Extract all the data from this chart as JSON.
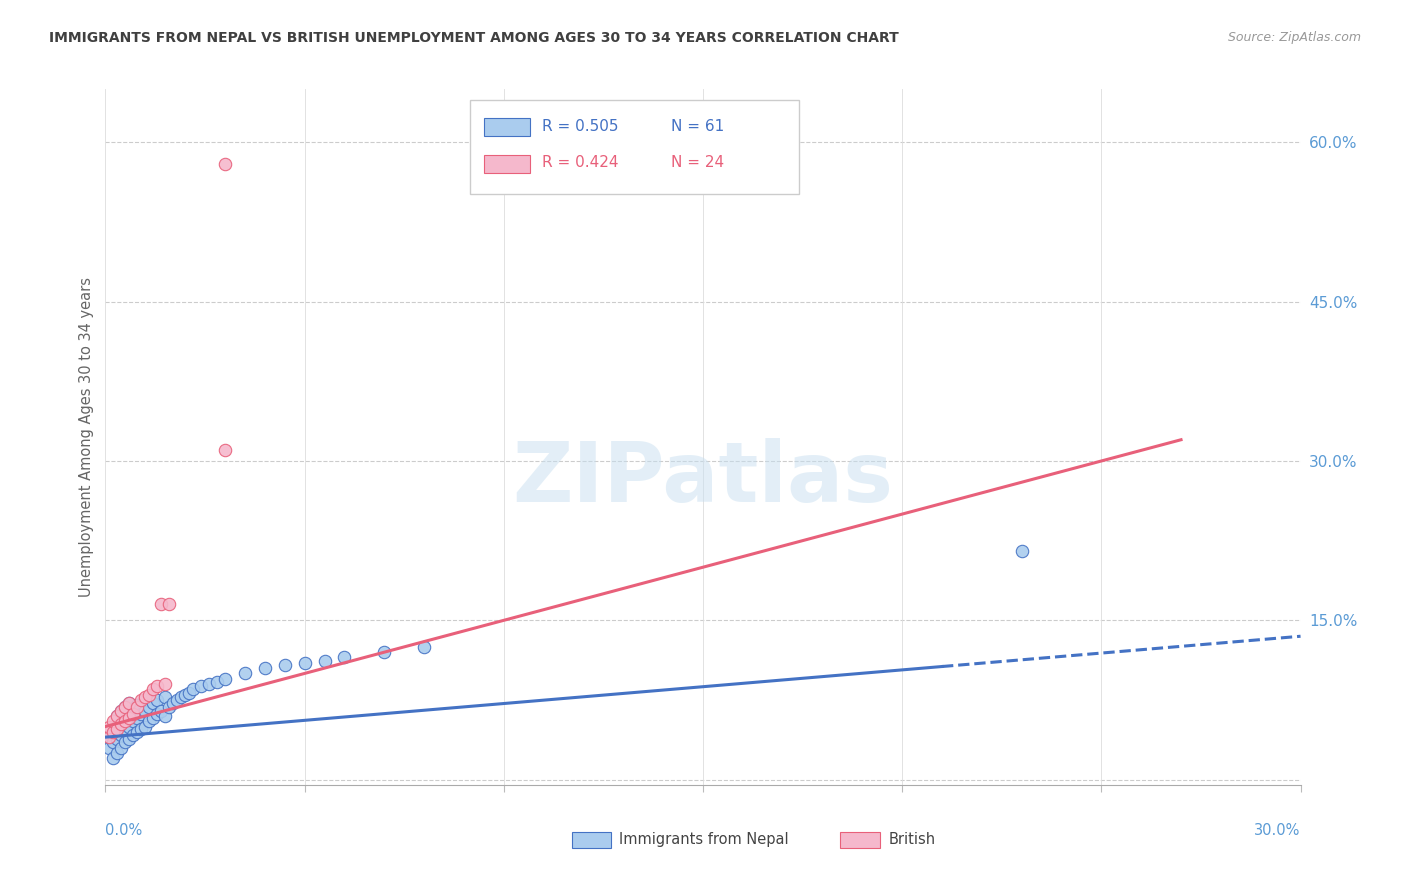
{
  "title": "IMMIGRANTS FROM NEPAL VS BRITISH UNEMPLOYMENT AMONG AGES 30 TO 34 YEARS CORRELATION CHART",
  "source": "Source: ZipAtlas.com",
  "ylabel": "Unemployment Among Ages 30 to 34 years",
  "xlim": [
    0.0,
    0.3
  ],
  "ylim": [
    -0.005,
    0.65
  ],
  "ytick_vals": [
    0.0,
    0.15,
    0.3,
    0.45,
    0.6
  ],
  "ytick_labels": [
    "",
    "15.0%",
    "30.0%",
    "45.0%",
    "60.0%"
  ],
  "xtick_vals": [
    0.0,
    0.05,
    0.1,
    0.15,
    0.2,
    0.25,
    0.3
  ],
  "legend_label1": "Immigrants from Nepal",
  "legend_label2": "British",
  "R1": "0.505",
  "N1": "61",
  "R2": "0.424",
  "N2": "24",
  "color_nepal_fill": "#aaccee",
  "color_nepal_edge": "#4472c4",
  "color_british_fill": "#f5b8cc",
  "color_british_edge": "#e8607a",
  "color_axis_right": "#5b9bd5",
  "color_title": "#404040",
  "watermark": "ZIPatlas",
  "nepal_x": [
    0.001,
    0.001,
    0.002,
    0.002,
    0.002,
    0.003,
    0.003,
    0.003,
    0.003,
    0.004,
    0.004,
    0.004,
    0.004,
    0.005,
    0.005,
    0.005,
    0.005,
    0.006,
    0.006,
    0.006,
    0.006,
    0.007,
    0.007,
    0.007,
    0.008,
    0.008,
    0.008,
    0.009,
    0.009,
    0.01,
    0.01,
    0.01,
    0.011,
    0.011,
    0.012,
    0.012,
    0.013,
    0.013,
    0.014,
    0.015,
    0.015,
    0.016,
    0.017,
    0.018,
    0.019,
    0.02,
    0.021,
    0.022,
    0.024,
    0.026,
    0.028,
    0.03,
    0.035,
    0.04,
    0.045,
    0.05,
    0.055,
    0.06,
    0.07,
    0.08,
    0.23
  ],
  "nepal_y": [
    0.03,
    0.04,
    0.02,
    0.035,
    0.045,
    0.025,
    0.038,
    0.05,
    0.06,
    0.03,
    0.042,
    0.055,
    0.065,
    0.035,
    0.048,
    0.058,
    0.068,
    0.038,
    0.05,
    0.062,
    0.072,
    0.042,
    0.055,
    0.065,
    0.045,
    0.058,
    0.07,
    0.048,
    0.062,
    0.05,
    0.065,
    0.075,
    0.055,
    0.068,
    0.058,
    0.072,
    0.062,
    0.075,
    0.065,
    0.06,
    0.078,
    0.068,
    0.072,
    0.075,
    0.078,
    0.08,
    0.082,
    0.085,
    0.088,
    0.09,
    0.092,
    0.095,
    0.1,
    0.105,
    0.108,
    0.11,
    0.112,
    0.115,
    0.12,
    0.125,
    0.215
  ],
  "british_x": [
    0.001,
    0.001,
    0.002,
    0.002,
    0.003,
    0.003,
    0.004,
    0.004,
    0.005,
    0.005,
    0.006,
    0.006,
    0.007,
    0.008,
    0.009,
    0.01,
    0.011,
    0.012,
    0.013,
    0.014,
    0.015,
    0.016,
    0.03,
    0.03
  ],
  "british_y": [
    0.04,
    0.05,
    0.045,
    0.055,
    0.048,
    0.06,
    0.052,
    0.065,
    0.055,
    0.068,
    0.058,
    0.072,
    0.062,
    0.068,
    0.075,
    0.078,
    0.08,
    0.085,
    0.088,
    0.165,
    0.09,
    0.165,
    0.31,
    0.58
  ],
  "nepal_line": {
    "x0": 0.0,
    "x1": 0.3,
    "solid_end": 0.21,
    "y0": 0.04,
    "y1": 0.135
  },
  "british_line": {
    "x0": 0.0,
    "x1": 0.27,
    "y0": 0.05,
    "y1": 0.32
  },
  "marker_size": 80,
  "line_width": 2.2
}
